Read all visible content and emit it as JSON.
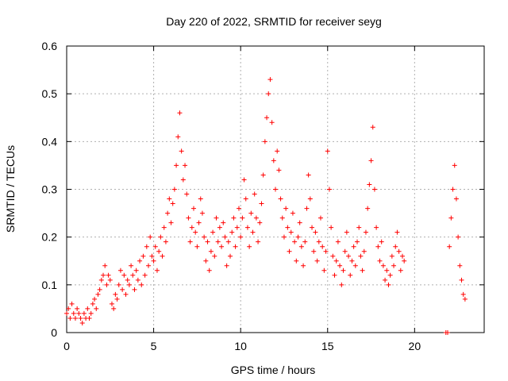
{
  "chart_data": {
    "type": "scatter",
    "title": "Day 220 of 2022, SRMTID for receiver seyg",
    "xlabel": "GPS time / hours",
    "ylabel": "SRMTID / TECUs",
    "xlim": [
      0,
      24
    ],
    "ylim": [
      0,
      0.6
    ],
    "grid": true,
    "marker": "plus",
    "xticks": [
      0,
      5,
      10,
      15,
      20
    ],
    "xtick_labels": [
      "0",
      "5",
      "10",
      "15",
      "20"
    ],
    "yticks": [
      0,
      0.1,
      0.2,
      0.3,
      0.4,
      0.5,
      0.6
    ],
    "ytick_labels": [
      "0",
      "0.1",
      "0.2",
      "0.3",
      "0.4",
      "0.5",
      "0.6"
    ],
    "series": [
      {
        "name": "SRMTID",
        "color": "#ff0000",
        "points": [
          [
            0.0,
            0.04
          ],
          [
            0.1,
            0.05
          ],
          [
            0.2,
            0.03
          ],
          [
            0.3,
            0.06
          ],
          [
            0.4,
            0.04
          ],
          [
            0.5,
            0.03
          ],
          [
            0.6,
            0.05
          ],
          [
            0.7,
            0.04
          ],
          [
            0.8,
            0.03
          ],
          [
            0.9,
            0.02
          ],
          [
            1.0,
            0.04
          ],
          [
            1.1,
            0.03
          ],
          [
            1.2,
            0.05
          ],
          [
            1.3,
            0.03
          ],
          [
            1.4,
            0.04
          ],
          [
            1.5,
            0.06
          ],
          [
            1.6,
            0.07
          ],
          [
            1.7,
            0.05
          ],
          [
            1.8,
            0.08
          ],
          [
            1.9,
            0.09
          ],
          [
            2.0,
            0.11
          ],
          [
            2.1,
            0.12
          ],
          [
            2.2,
            0.14
          ],
          [
            2.3,
            0.1
          ],
          [
            2.4,
            0.12
          ],
          [
            2.5,
            0.11
          ],
          [
            2.6,
            0.06
          ],
          [
            2.7,
            0.05
          ],
          [
            2.8,
            0.08
          ],
          [
            2.9,
            0.07
          ],
          [
            3.0,
            0.1
          ],
          [
            3.1,
            0.13
          ],
          [
            3.2,
            0.09
          ],
          [
            3.3,
            0.12
          ],
          [
            3.4,
            0.08
          ],
          [
            3.5,
            0.11
          ],
          [
            3.6,
            0.1
          ],
          [
            3.7,
            0.14
          ],
          [
            3.8,
            0.12
          ],
          [
            3.9,
            0.09
          ],
          [
            4.0,
            0.13
          ],
          [
            4.1,
            0.11
          ],
          [
            4.2,
            0.15
          ],
          [
            4.3,
            0.1
          ],
          [
            4.4,
            0.16
          ],
          [
            4.5,
            0.12
          ],
          [
            4.6,
            0.18
          ],
          [
            4.7,
            0.14
          ],
          [
            4.8,
            0.2
          ],
          [
            4.9,
            0.16
          ],
          [
            5.0,
            0.15
          ],
          [
            5.1,
            0.18
          ],
          [
            5.2,
            0.13
          ],
          [
            5.3,
            0.17
          ],
          [
            5.4,
            0.2
          ],
          [
            5.5,
            0.16
          ],
          [
            5.6,
            0.22
          ],
          [
            5.7,
            0.19
          ],
          [
            5.8,
            0.25
          ],
          [
            5.9,
            0.28
          ],
          [
            6.0,
            0.23
          ],
          [
            6.1,
            0.27
          ],
          [
            6.2,
            0.3
          ],
          [
            6.3,
            0.35
          ],
          [
            6.4,
            0.41
          ],
          [
            6.5,
            0.46
          ],
          [
            6.6,
            0.38
          ],
          [
            6.7,
            0.32
          ],
          [
            6.8,
            0.35
          ],
          [
            6.9,
            0.29
          ],
          [
            7.0,
            0.24
          ],
          [
            7.1,
            0.19
          ],
          [
            7.2,
            0.22
          ],
          [
            7.3,
            0.26
          ],
          [
            7.4,
            0.21
          ],
          [
            7.5,
            0.18
          ],
          [
            7.6,
            0.23
          ],
          [
            7.7,
            0.28
          ],
          [
            7.8,
            0.25
          ],
          [
            7.9,
            0.2
          ],
          [
            8.0,
            0.15
          ],
          [
            8.1,
            0.19
          ],
          [
            8.2,
            0.13
          ],
          [
            8.3,
            0.17
          ],
          [
            8.4,
            0.21
          ],
          [
            8.5,
            0.16
          ],
          [
            8.6,
            0.24
          ],
          [
            8.7,
            0.19
          ],
          [
            8.8,
            0.22
          ],
          [
            8.9,
            0.18
          ],
          [
            9.0,
            0.23
          ],
          [
            9.1,
            0.2
          ],
          [
            9.2,
            0.14
          ],
          [
            9.3,
            0.19
          ],
          [
            9.4,
            0.16
          ],
          [
            9.5,
            0.21
          ],
          [
            9.6,
            0.24
          ],
          [
            9.7,
            0.18
          ],
          [
            9.8,
            0.22
          ],
          [
            9.9,
            0.26
          ],
          [
            10.0,
            0.2
          ],
          [
            10.1,
            0.24
          ],
          [
            10.2,
            0.32
          ],
          [
            10.3,
            0.28
          ],
          [
            10.4,
            0.22
          ],
          [
            10.5,
            0.18
          ],
          [
            10.6,
            0.25
          ],
          [
            10.7,
            0.21
          ],
          [
            10.8,
            0.29
          ],
          [
            10.9,
            0.24
          ],
          [
            11.0,
            0.19
          ],
          [
            11.1,
            0.23
          ],
          [
            11.2,
            0.27
          ],
          [
            11.3,
            0.33
          ],
          [
            11.4,
            0.4
          ],
          [
            11.5,
            0.45
          ],
          [
            11.6,
            0.5
          ],
          [
            11.7,
            0.53
          ],
          [
            11.8,
            0.44
          ],
          [
            11.9,
            0.36
          ],
          [
            12.0,
            0.3
          ],
          [
            12.1,
            0.38
          ],
          [
            12.2,
            0.34
          ],
          [
            12.3,
            0.28
          ],
          [
            12.4,
            0.24
          ],
          [
            12.5,
            0.2
          ],
          [
            12.6,
            0.26
          ],
          [
            12.7,
            0.22
          ],
          [
            12.8,
            0.17
          ],
          [
            12.9,
            0.21
          ],
          [
            13.0,
            0.25
          ],
          [
            13.1,
            0.19
          ],
          [
            13.2,
            0.15
          ],
          [
            13.3,
            0.2
          ],
          [
            13.4,
            0.23
          ],
          [
            13.5,
            0.18
          ],
          [
            13.6,
            0.14
          ],
          [
            13.7,
            0.19
          ],
          [
            13.8,
            0.26
          ],
          [
            13.9,
            0.33
          ],
          [
            14.0,
            0.28
          ],
          [
            14.1,
            0.22
          ],
          [
            14.2,
            0.17
          ],
          [
            14.3,
            0.21
          ],
          [
            14.4,
            0.15
          ],
          [
            14.5,
            0.19
          ],
          [
            14.6,
            0.24
          ],
          [
            14.7,
            0.18
          ],
          [
            14.8,
            0.13
          ],
          [
            14.9,
            0.17
          ],
          [
            15.0,
            0.38
          ],
          [
            15.1,
            0.3
          ],
          [
            15.2,
            0.22
          ],
          [
            15.3,
            0.16
          ],
          [
            15.4,
            0.12
          ],
          [
            15.5,
            0.15
          ],
          [
            15.6,
            0.19
          ],
          [
            15.7,
            0.14
          ],
          [
            15.8,
            0.1
          ],
          [
            15.9,
            0.13
          ],
          [
            16.0,
            0.17
          ],
          [
            16.1,
            0.21
          ],
          [
            16.2,
            0.16
          ],
          [
            16.3,
            0.12
          ],
          [
            16.4,
            0.15
          ],
          [
            16.5,
            0.18
          ],
          [
            16.6,
            0.14
          ],
          [
            16.7,
            0.19
          ],
          [
            16.8,
            0.22
          ],
          [
            16.9,
            0.16
          ],
          [
            17.0,
            0.13
          ],
          [
            17.1,
            0.17
          ],
          [
            17.2,
            0.21
          ],
          [
            17.3,
            0.26
          ],
          [
            17.4,
            0.31
          ],
          [
            17.5,
            0.36
          ],
          [
            17.6,
            0.43
          ],
          [
            17.7,
            0.3
          ],
          [
            17.8,
            0.22
          ],
          [
            17.9,
            0.18
          ],
          [
            18.0,
            0.15
          ],
          [
            18.1,
            0.19
          ],
          [
            18.2,
            0.14
          ],
          [
            18.3,
            0.11
          ],
          [
            18.4,
            0.13
          ],
          [
            18.5,
            0.1
          ],
          [
            18.6,
            0.12
          ],
          [
            18.7,
            0.16
          ],
          [
            18.8,
            0.14
          ],
          [
            18.9,
            0.18
          ],
          [
            19.0,
            0.21
          ],
          [
            19.1,
            0.17
          ],
          [
            19.2,
            0.13
          ],
          [
            19.3,
            0.16
          ],
          [
            19.4,
            0.15
          ],
          [
            21.8,
            0.0
          ],
          [
            21.9,
            0.0
          ],
          [
            22.0,
            0.18
          ],
          [
            22.1,
            0.24
          ],
          [
            22.2,
            0.3
          ],
          [
            22.3,
            0.35
          ],
          [
            22.4,
            0.28
          ],
          [
            22.5,
            0.2
          ],
          [
            22.6,
            0.14
          ],
          [
            22.7,
            0.11
          ],
          [
            22.8,
            0.08
          ],
          [
            22.9,
            0.07
          ]
        ]
      }
    ]
  }
}
